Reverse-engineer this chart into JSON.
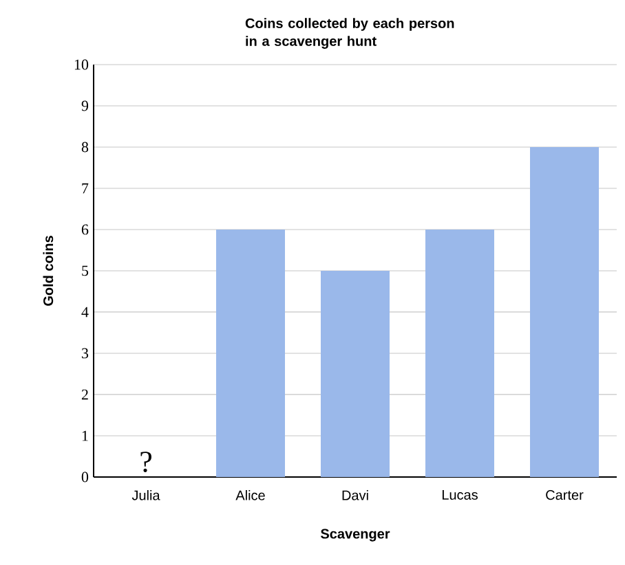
{
  "chart_data": {
    "type": "bar",
    "title": "Coins collected by each person in a scavenger hunt",
    "xlabel": "Scavenger",
    "ylabel": "Gold coins",
    "categories": [
      "Julia",
      "Alice",
      "Davi",
      "Lucas",
      "Carter"
    ],
    "values": [
      null,
      6,
      5,
      6,
      8
    ],
    "color": "#9ab8ea",
    "ylim": [
      0,
      10
    ],
    "yticks": [
      0,
      1,
      2,
      3,
      4,
      5,
      6,
      7,
      8,
      9,
      10
    ],
    "grid": "y",
    "annotations": [
      "?"
    ]
  }
}
